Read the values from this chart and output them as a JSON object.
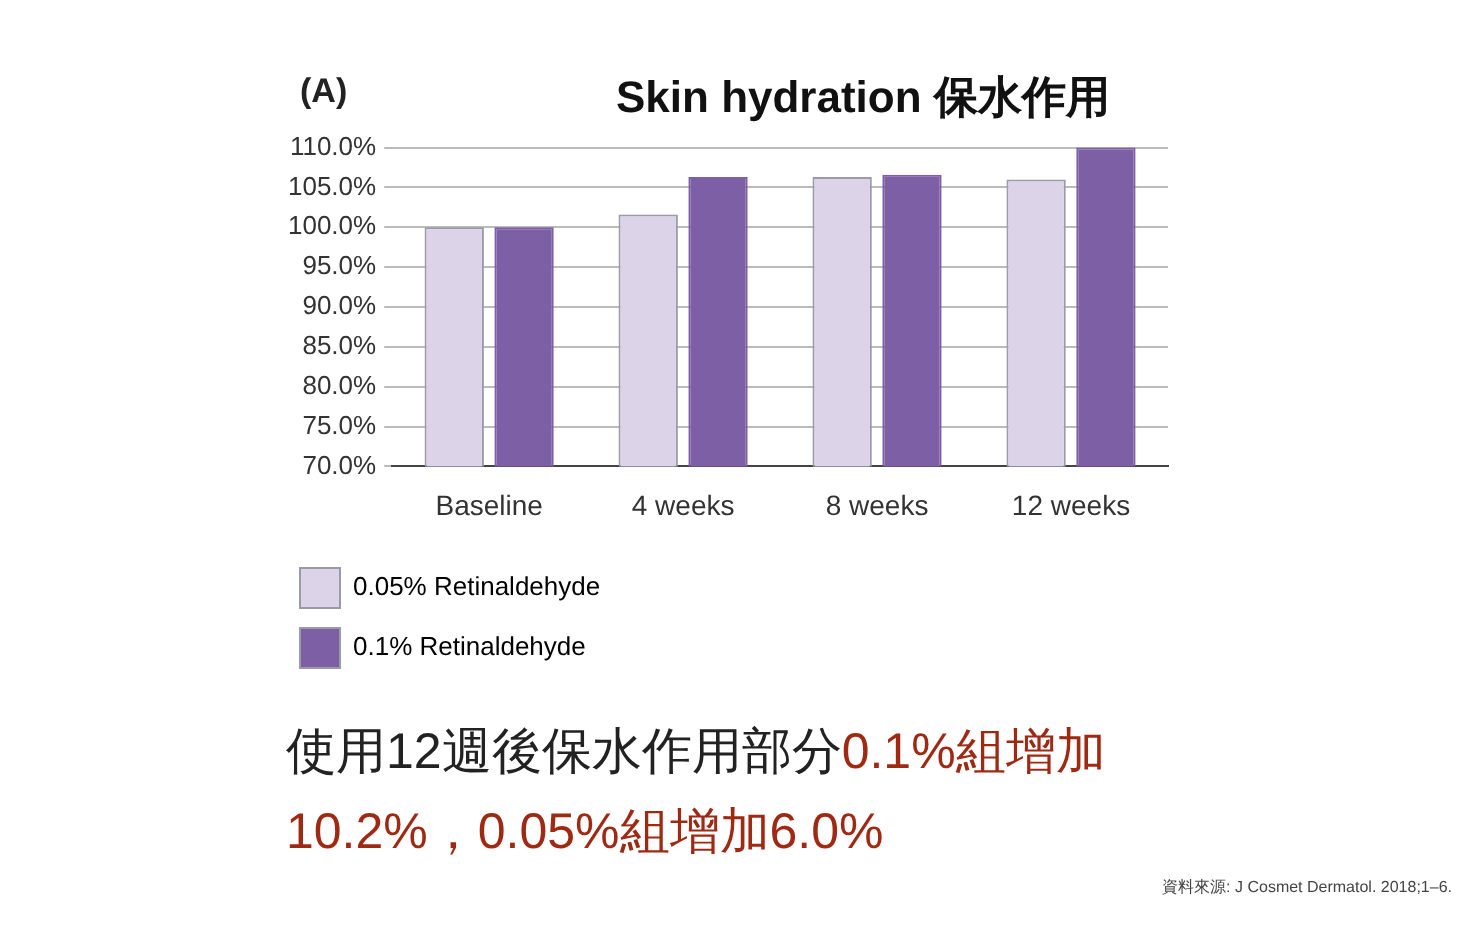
{
  "chart_data": {
    "type": "bar",
    "title": "Skin hydration 保水作用",
    "subtitle": "(A)",
    "categories": [
      "Baseline",
      "4 weeks",
      "8 weeks",
      "12 weeks"
    ],
    "series": [
      {
        "name": "0.05% Retinaldehyde",
        "color": "#dcd3e8",
        "values": [
          100.0,
          101.6,
          106.3,
          106.0
        ]
      },
      {
        "name": "0.1% Retinaldehyde",
        "color": "#7d5fa5",
        "values": [
          100.0,
          106.3,
          106.6,
          110.0
        ]
      }
    ],
    "ylim": [
      70,
      110
    ],
    "yticks": [
      {
        "value": 70,
        "label": "70.0%"
      },
      {
        "value": 75,
        "label": "75.0%"
      },
      {
        "value": 80,
        "label": "80.0%"
      },
      {
        "value": 85,
        "label": "85.0%"
      },
      {
        "value": 90,
        "label": "90.0%"
      },
      {
        "value": 95,
        "label": "95.0%"
      },
      {
        "value": 100,
        "label": "100.0%"
      },
      {
        "value": 105,
        "label": "105.0%"
      },
      {
        "value": 110,
        "label": "110.0%"
      }
    ],
    "grid": "y",
    "legend": "bottom",
    "annotations": [
      "使用12週後保水作用部分",
      "0.1%組增加10.2%，0.05%組增加6.0%",
      "資料來源: J Cosmet Dermatol. 2018;1–6."
    ]
  }
}
